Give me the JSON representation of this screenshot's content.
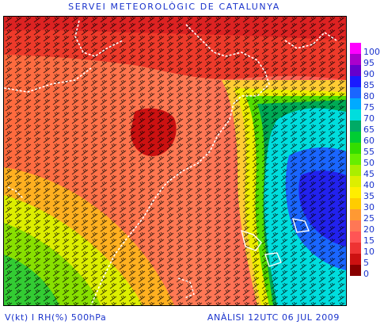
{
  "header": {
    "title": "SERVEI METEOROLÒGIC DE CATALUNYA"
  },
  "footer": {
    "variables": "V(kt) I RH(%) 500hPa",
    "analysis": "ANÀLISI 12UTC 06 JUL 2009"
  },
  "legend": {
    "levels": [
      "100",
      "95",
      "90",
      "85",
      "80",
      "75",
      "70",
      "65",
      "60",
      "55",
      "50",
      "45",
      "40",
      "35",
      "30",
      "25",
      "20",
      "15",
      "10",
      "5",
      "0"
    ],
    "colors": [
      "#ff00ff",
      "#aa00cc",
      "#6600cc",
      "#1a1aff",
      "#1a66ff",
      "#00aaff",
      "#00dddd",
      "#00aa66",
      "#00cc33",
      "#33dd00",
      "#66ee00",
      "#aaee00",
      "#ddee00",
      "#ffee00",
      "#ffcc00",
      "#ff9933",
      "#ff7755",
      "#ff5555",
      "#ee3333",
      "#cc1111",
      "#880000"
    ]
  }
}
